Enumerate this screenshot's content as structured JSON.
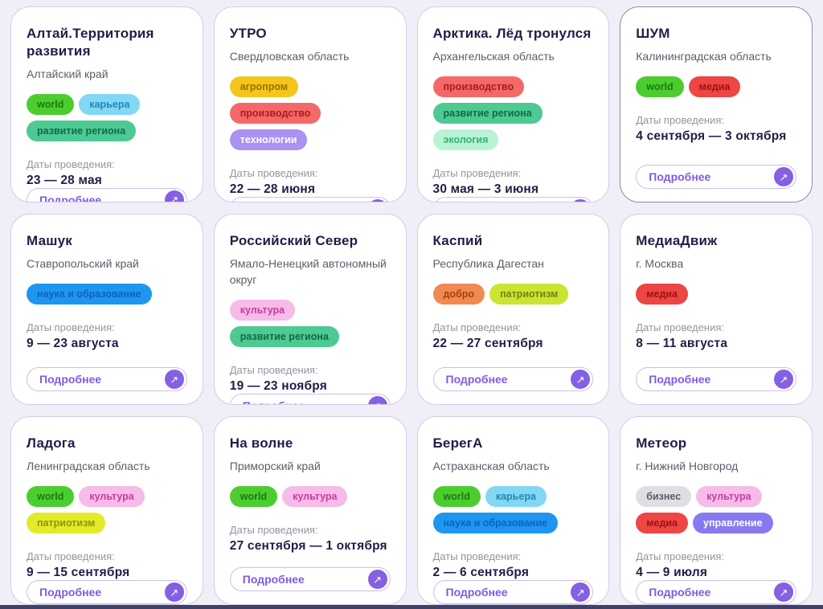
{
  "labels": {
    "dates": "Даты проведения:",
    "details": "Подробнее",
    "arrow": "↗"
  },
  "theme": {
    "page_bg": "#f1eef7",
    "card_bg": "#ffffff",
    "card_border": "#d3cbea",
    "highlighted_card_border": "#8e8c9f",
    "accent_purple": "#7e5ce0",
    "footer_bar": "#3e4266"
  },
  "cards": [
    {
      "title": "Алтай.Территория развития",
      "region": "Алтайский край",
      "dates": "23 — 28 мая",
      "border_color": "#d3cbea",
      "tags": [
        {
          "label": "world",
          "bg": "#4ccd2f",
          "fg": "#1b7a10"
        },
        {
          "label": "карьера",
          "bg": "#82d8f4",
          "fg": "#2187b5"
        },
        {
          "label": "развитие региона",
          "bg": "#4dc993",
          "fg": "#0f6b45"
        }
      ]
    },
    {
      "title": "УТРО",
      "region": "Свердловская область",
      "dates": "22 — 28 июня",
      "border_color": "#d3cbea",
      "tags": [
        {
          "label": "агропром",
          "bg": "#f4c61c",
          "fg": "#977003"
        },
        {
          "label": "производство",
          "bg": "#f56868",
          "fg": "#a81d1d"
        },
        {
          "label": "технологии",
          "bg": "#ab91f2",
          "fg": "#ffffff"
        }
      ]
    },
    {
      "title": "Арктика. Лёд тронулся",
      "region": "Архангельская область",
      "dates": "30 мая — 3 июня",
      "border_color": "#d3cbea",
      "tags": [
        {
          "label": "производство",
          "bg": "#f56868",
          "fg": "#a81d1d"
        },
        {
          "label": "развитие региона",
          "bg": "#4dc993",
          "fg": "#0f6b45"
        },
        {
          "label": "экология",
          "bg": "#b9f2d4",
          "fg": "#35b377"
        }
      ]
    },
    {
      "title": "ШУМ",
      "region": "Калининградская область",
      "dates": "4 сентября — 3 октября",
      "border_color": "#8e8c9f",
      "tags": [
        {
          "label": "world",
          "bg": "#4ccd2f",
          "fg": "#1b7a10"
        },
        {
          "label": "медиа",
          "bg": "#ee4545",
          "fg": "#9c1212"
        }
      ]
    },
    {
      "title": "Машук",
      "region": "Ставропольский край",
      "dates": "9 — 23 августа",
      "border_color": "#d3cbea",
      "tags": [
        {
          "label": "наука и образование",
          "bg": "#1e96ef",
          "fg": "#0c63be"
        }
      ]
    },
    {
      "title": "Российский Север",
      "region": "Ямало-Ненецкий автономный округ",
      "dates": "19 — 23 ноября",
      "border_color": "#d3cbea",
      "tags": [
        {
          "label": "культура",
          "bg": "#f6bbe9",
          "fg": "#c83c9e"
        },
        {
          "label": "развитие региона",
          "bg": "#4dc993",
          "fg": "#0f6b45"
        }
      ]
    },
    {
      "title": "Каспий",
      "region": "Республика Дагестан",
      "dates": "22 — 27 сентября",
      "border_color": "#d3cbea",
      "tags": [
        {
          "label": "добро",
          "bg": "#f08a52",
          "fg": "#ab3c0d"
        },
        {
          "label": "патриотизм",
          "bg": "#c9e531",
          "fg": "#75810f"
        }
      ]
    },
    {
      "title": "МедиаДвиж",
      "region": "г. Москва",
      "dates": "8 — 11 августа",
      "border_color": "#d3cbea",
      "tags": [
        {
          "label": "медиа",
          "bg": "#ee4545",
          "fg": "#9c1212"
        }
      ]
    },
    {
      "title": "Ладога",
      "region": "Ленинградская область",
      "dates": "9 — 15 сентября",
      "border_color": "#d3cbea",
      "tags": [
        {
          "label": "world",
          "bg": "#4ccd2f",
          "fg": "#1b7a10"
        },
        {
          "label": "культура",
          "bg": "#f6bbe9",
          "fg": "#c83c9e"
        },
        {
          "label": "патриотизм",
          "bg": "#e3ea29",
          "fg": "#8f940d"
        }
      ]
    },
    {
      "title": "На волне",
      "region": "Приморский край",
      "dates": "27 сентября — 1 октября",
      "border_color": "#d3cbea",
      "tags": [
        {
          "label": "world",
          "bg": "#4ccd2f",
          "fg": "#1b7a10"
        },
        {
          "label": "культура",
          "bg": "#f6bbe9",
          "fg": "#c83c9e"
        }
      ]
    },
    {
      "title": "БерегА",
      "region": "Астраханская область",
      "dates": "2 — 6 сентября",
      "border_color": "#d3cbea",
      "tags": [
        {
          "label": "world",
          "bg": "#4ccd2f",
          "fg": "#1b7a10"
        },
        {
          "label": "карьера",
          "bg": "#82d8f4",
          "fg": "#2187b5"
        },
        {
          "label": "наука и образование",
          "bg": "#1e96ef",
          "fg": "#0c63be"
        }
      ]
    },
    {
      "title": "Метеор",
      "region": "г. Нижний Новгород",
      "dates": "4 — 9 июля",
      "border_color": "#d3cbea",
      "tags": [
        {
          "label": "бизнес",
          "bg": "#dfdfe3",
          "fg": "#5b5a64"
        },
        {
          "label": "культура",
          "bg": "#f6bbe9",
          "fg": "#c83c9e"
        },
        {
          "label": "медиа",
          "bg": "#ee4545",
          "fg": "#9c1212"
        },
        {
          "label": "управление",
          "bg": "#8779ef",
          "fg": "#ffffff"
        }
      ]
    }
  ]
}
